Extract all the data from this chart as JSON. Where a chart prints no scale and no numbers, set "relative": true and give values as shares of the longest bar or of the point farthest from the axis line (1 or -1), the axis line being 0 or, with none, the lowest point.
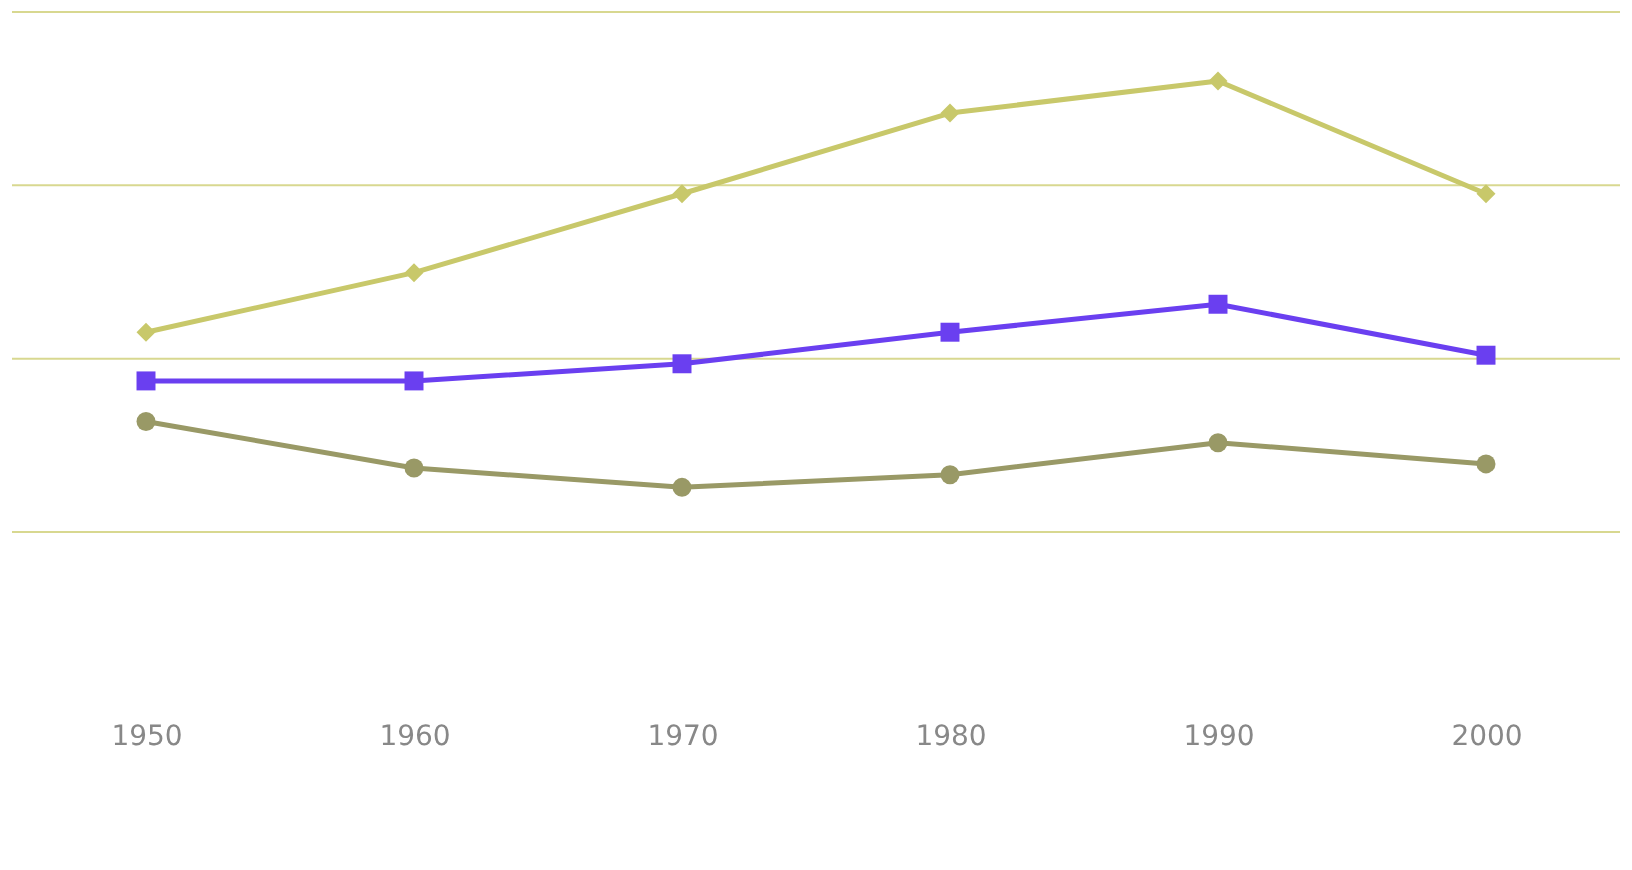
{
  "chart_data": {
    "type": "line",
    "relative": true,
    "categories": [
      "1950",
      "1960",
      "1970",
      "1980",
      "1990",
      "2000"
    ],
    "series": [
      {
        "color": "#6a3ff0",
        "marker": "square",
        "values": [
          0.335,
          0.335,
          0.373,
          0.443,
          0.505,
          0.392
        ]
      },
      {
        "color": "#c8c86a",
        "marker": "diamond",
        "values": [
          0.443,
          0.575,
          0.75,
          0.929,
          1,
          0.75
        ]
      },
      {
        "color": "#999966",
        "marker": "circle",
        "values": [
          0.245,
          0.142,
          0.099,
          0.127,
          0.198,
          0.151
        ]
      }
    ],
    "ref_lines": [
      {
        "axis": "y",
        "value": 0,
        "color": "#d8d890"
      },
      {
        "axis": "y",
        "value": 0.384,
        "color": "#d8d890"
      },
      {
        "axis": "y",
        "value": 0.769,
        "color": "#d8d890"
      },
      {
        "axis": "y",
        "value": 1.153,
        "color": "#d8d890"
      }
    ]
  }
}
